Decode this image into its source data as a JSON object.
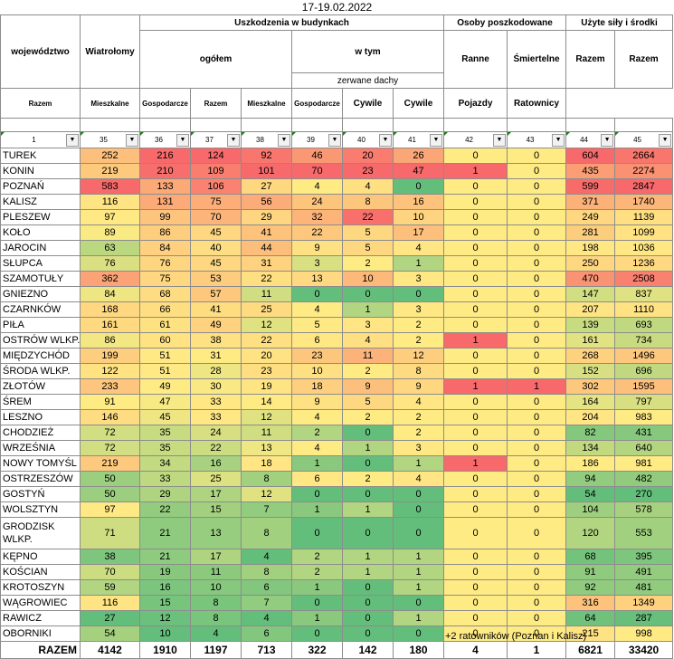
{
  "title": "17-19.02.2022",
  "headers": {
    "wojewodztwo": "województwo",
    "wiatrolomy": "Wiatrołomy",
    "uszkodzenia": "Uszkodzenia w budynkach",
    "ogolem": "ogółem",
    "w_tym": "w tym",
    "zerwane_dachy": "zerwane dachy",
    "osoby": "Osoby poszkodowane",
    "ranne": "Ranne",
    "smiertelne": "Śmiertelne",
    "sily": "Użyte siły i środki",
    "razem": "Razem",
    "mieszkalne": "Mieszkalne",
    "gospodarcze": "Gospodarcze",
    "cywile": "Cywile",
    "pojazdy": "Pojazdy",
    "ratownicy": "Ratownicy"
  },
  "filter_numbers": [
    "1",
    "35",
    "36",
    "37",
    "38",
    "39",
    "40",
    "41",
    "42",
    "43",
    "44",
    "45"
  ],
  "rows": [
    {
      "name": "TUREK",
      "v": [
        "252",
        "216",
        "124",
        "92",
        "46",
        "20",
        "26",
        "0",
        "0",
        "604",
        "2664"
      ]
    },
    {
      "name": "KONIN",
      "v": [
        "219",
        "210",
        "109",
        "101",
        "70",
        "23",
        "47",
        "1",
        "0",
        "435",
        "2274"
      ]
    },
    {
      "name": "POZNAŃ",
      "v": [
        "583",
        "133",
        "106",
        "27",
        "4",
        "4",
        "0",
        "0",
        "0",
        "599",
        "2847"
      ]
    },
    {
      "name": "KALISZ",
      "v": [
        "116",
        "131",
        "75",
        "56",
        "24",
        "8",
        "16",
        "0",
        "0",
        "371",
        "1740"
      ]
    },
    {
      "name": "PLESZEW",
      "v": [
        "97",
        "99",
        "70",
        "29",
        "32",
        "22",
        "10",
        "0",
        "0",
        "249",
        "1139"
      ]
    },
    {
      "name": "KOŁO",
      "v": [
        "89",
        "86",
        "45",
        "41",
        "22",
        "5",
        "17",
        "0",
        "0",
        "281",
        "1099"
      ]
    },
    {
      "name": "JAROCIN",
      "v": [
        "63",
        "84",
        "40",
        "44",
        "9",
        "5",
        "4",
        "0",
        "0",
        "198",
        "1036"
      ]
    },
    {
      "name": "SŁUPCA",
      "v": [
        "76",
        "76",
        "45",
        "31",
        "3",
        "2",
        "1",
        "0",
        "0",
        "250",
        "1236"
      ]
    },
    {
      "name": "SZAMOTUŁY",
      "v": [
        "362",
        "75",
        "53",
        "22",
        "13",
        "10",
        "3",
        "0",
        "0",
        "470",
        "2508"
      ]
    },
    {
      "name": "GNIEZNO",
      "v": [
        "84",
        "68",
        "57",
        "11",
        "0",
        "0",
        "0",
        "0",
        "0",
        "147",
        "837"
      ]
    },
    {
      "name": "CZARNKÓW",
      "v": [
        "168",
        "66",
        "41",
        "25",
        "4",
        "1",
        "3",
        "0",
        "0",
        "207",
        "1110"
      ]
    },
    {
      "name": "PIŁA",
      "v": [
        "161",
        "61",
        "49",
        "12",
        "5",
        "3",
        "2",
        "0",
        "0",
        "139",
        "693"
      ]
    },
    {
      "name": "OSTRÓW WLKP.",
      "v": [
        "86",
        "60",
        "38",
        "22",
        "6",
        "4",
        "2",
        "1",
        "0",
        "161",
        "734"
      ]
    },
    {
      "name": "MIĘDZYCHÓD",
      "v": [
        "199",
        "51",
        "31",
        "20",
        "23",
        "11",
        "12",
        "0",
        "0",
        "268",
        "1496"
      ]
    },
    {
      "name": "ŚRODA WLKP.",
      "v": [
        "122",
        "51",
        "28",
        "23",
        "10",
        "2",
        "8",
        "0",
        "0",
        "152",
        "696"
      ]
    },
    {
      "name": "ZŁOTÓW",
      "v": [
        "233",
        "49",
        "30",
        "19",
        "18",
        "9",
        "9",
        "1",
        "1",
        "302",
        "1595"
      ]
    },
    {
      "name": "ŚREM",
      "v": [
        "91",
        "47",
        "33",
        "14",
        "9",
        "5",
        "4",
        "0",
        "0",
        "164",
        "797"
      ]
    },
    {
      "name": "LESZNO",
      "v": [
        "146",
        "45",
        "33",
        "12",
        "4",
        "2",
        "2",
        "0",
        "0",
        "204",
        "983"
      ]
    },
    {
      "name": "CHODZIEŻ",
      "v": [
        "72",
        "35",
        "24",
        "11",
        "2",
        "0",
        "2",
        "0",
        "0",
        "82",
        "431"
      ]
    },
    {
      "name": "WRZEŚNIA",
      "v": [
        "72",
        "35",
        "22",
        "13",
        "4",
        "1",
        "3",
        "0",
        "0",
        "134",
        "640"
      ]
    },
    {
      "name": "NOWY TOMYŚL",
      "v": [
        "219",
        "34",
        "16",
        "18",
        "1",
        "0",
        "1",
        "1",
        "0",
        "186",
        "981"
      ]
    },
    {
      "name": "OSTRZESZÓW",
      "v": [
        "50",
        "33",
        "25",
        "8",
        "6",
        "2",
        "4",
        "0",
        "0",
        "94",
        "482"
      ]
    },
    {
      "name": "GOSTYŃ",
      "v": [
        "50",
        "29",
        "17",
        "12",
        "0",
        "0",
        "0",
        "0",
        "0",
        "54",
        "270"
      ]
    },
    {
      "name": "WOLSZTYN",
      "v": [
        "97",
        "22",
        "15",
        "7",
        "1",
        "1",
        "0",
        "0",
        "0",
        "104",
        "578"
      ]
    },
    {
      "name": "GRODZISK WLKP.",
      "v": [
        "71",
        "21",
        "13",
        "8",
        "0",
        "0",
        "0",
        "0",
        "0",
        "120",
        "553"
      ]
    },
    {
      "name": "KĘPNO",
      "v": [
        "38",
        "21",
        "17",
        "4",
        "2",
        "1",
        "1",
        "0",
        "0",
        "68",
        "395"
      ]
    },
    {
      "name": "KOŚCIAN",
      "v": [
        "70",
        "19",
        "11",
        "8",
        "2",
        "1",
        "1",
        "0",
        "0",
        "91",
        "491"
      ]
    },
    {
      "name": "KROTOSZYN",
      "v": [
        "59",
        "16",
        "10",
        "6",
        "1",
        "0",
        "1",
        "0",
        "0",
        "92",
        "481"
      ]
    },
    {
      "name": "WĄGROWIEC",
      "v": [
        "116",
        "15",
        "8",
        "7",
        "0",
        "0",
        "0",
        "0",
        "0",
        "316",
        "1349"
      ]
    },
    {
      "name": "RAWICZ",
      "v": [
        "27",
        "12",
        "8",
        "4",
        "1",
        "0",
        "1",
        "0",
        "0",
        "64",
        "287"
      ]
    },
    {
      "name": "OBORNIKI",
      "v": [
        "54",
        "10",
        "4",
        "6",
        "0",
        "0",
        "0",
        "0",
        "0",
        "215",
        "998"
      ]
    }
  ],
  "totals": {
    "label": "RAZEM",
    "v": [
      "4142",
      "1910",
      "1197",
      "713",
      "322",
      "142",
      "180",
      "4",
      "1",
      "6821",
      "33420"
    ]
  },
  "footnote": "+2 ratowników (Poznan i Kalisz)",
  "colors": {
    "red": "#f8696b",
    "green": "#63be7b",
    "yellow": "#ffeb84"
  }
}
